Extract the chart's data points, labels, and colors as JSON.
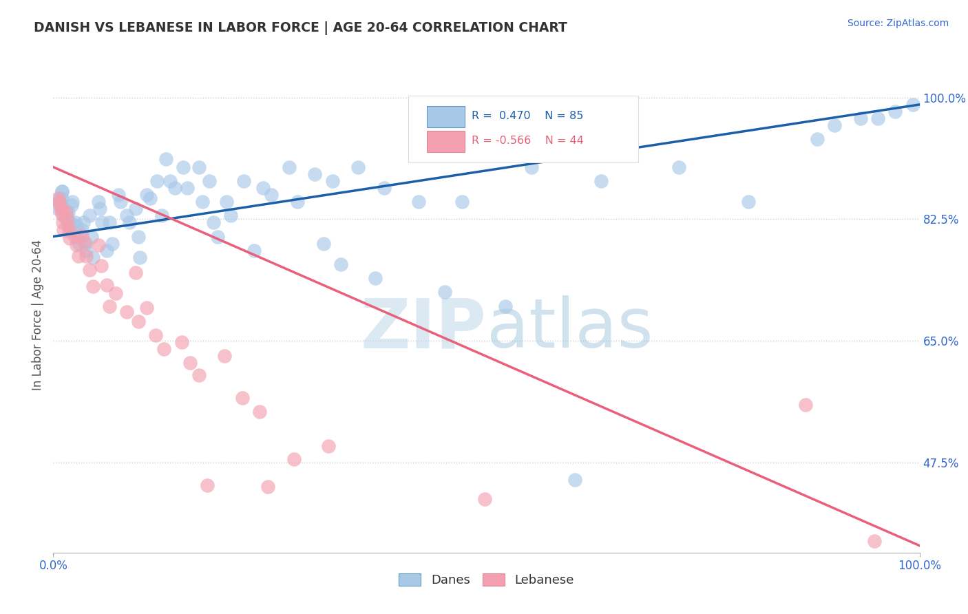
{
  "title": "DANISH VS LEBANESE IN LABOR FORCE | AGE 20-64 CORRELATION CHART",
  "source_text": "Source: ZipAtlas.com",
  "ylabel": "In Labor Force | Age 20-64",
  "xlim": [
    0.0,
    1.0
  ],
  "ylim": [
    0.345,
    1.03
  ],
  "yticks": [
    0.475,
    0.65,
    0.825,
    1.0
  ],
  "ytick_labels": [
    "47.5%",
    "65.0%",
    "82.5%",
    "100.0%"
  ],
  "xtick_labels": [
    "0.0%",
    "100.0%"
  ],
  "xticks": [
    0.0,
    1.0
  ],
  "danes_R": 0.47,
  "danes_N": 85,
  "lebanese_R": -0.566,
  "lebanese_N": 44,
  "danes_color": "#A8C8E8",
  "lebanese_color": "#F4A0B0",
  "danes_line_color": "#1A5FA8",
  "lebanese_line_color": "#E8607A",
  "background_color": "#FFFFFF",
  "grid_color": "#CCCCCC",
  "title_color": "#333333",
  "axis_label_color": "#3366CC",
  "watermark_zip": "ZIP",
  "watermark_atlas": "atlas",
  "danes_x": [
    0.005,
    0.007,
    0.008,
    0.009,
    0.01,
    0.01,
    0.01,
    0.011,
    0.012,
    0.015,
    0.016,
    0.017,
    0.018,
    0.019,
    0.02,
    0.021,
    0.022,
    0.025,
    0.027,
    0.028,
    0.03,
    0.033,
    0.035,
    0.037,
    0.038,
    0.042,
    0.044,
    0.046,
    0.052,
    0.054,
    0.056,
    0.062,
    0.065,
    0.068,
    0.075,
    0.078,
    0.085,
    0.088,
    0.095,
    0.098,
    0.1,
    0.108,
    0.112,
    0.12,
    0.125,
    0.13,
    0.135,
    0.14,
    0.15,
    0.155,
    0.168,
    0.172,
    0.18,
    0.185,
    0.19,
    0.2,
    0.205,
    0.22,
    0.232,
    0.242,
    0.252,
    0.272,
    0.282,
    0.302,
    0.312,
    0.322,
    0.332,
    0.352,
    0.372,
    0.382,
    0.422,
    0.452,
    0.472,
    0.522,
    0.552,
    0.602,
    0.632,
    0.722,
    0.802,
    0.882,
    0.902,
    0.932,
    0.952,
    0.972,
    0.992
  ],
  "danes_y": [
    0.84,
    0.85,
    0.855,
    0.845,
    0.855,
    0.865,
    0.865,
    0.84,
    0.83,
    0.825,
    0.83,
    0.835,
    0.82,
    0.815,
    0.82,
    0.845,
    0.85,
    0.82,
    0.815,
    0.8,
    0.79,
    0.81,
    0.82,
    0.79,
    0.78,
    0.83,
    0.8,
    0.77,
    0.85,
    0.84,
    0.82,
    0.78,
    0.82,
    0.79,
    0.86,
    0.85,
    0.83,
    0.82,
    0.84,
    0.8,
    0.77,
    0.86,
    0.855,
    0.88,
    0.83,
    0.912,
    0.88,
    0.87,
    0.9,
    0.87,
    0.9,
    0.85,
    0.88,
    0.82,
    0.8,
    0.85,
    0.83,
    0.88,
    0.78,
    0.87,
    0.86,
    0.9,
    0.85,
    0.89,
    0.79,
    0.88,
    0.76,
    0.9,
    0.74,
    0.87,
    0.85,
    0.72,
    0.85,
    0.7,
    0.9,
    0.45,
    0.88,
    0.9,
    0.85,
    0.94,
    0.96,
    0.97,
    0.97,
    0.98,
    0.99
  ],
  "lebanese_x": [
    0.005,
    0.007,
    0.008,
    0.009,
    0.01,
    0.011,
    0.012,
    0.015,
    0.016,
    0.017,
    0.018,
    0.019,
    0.025,
    0.027,
    0.029,
    0.033,
    0.036,
    0.038,
    0.042,
    0.046,
    0.052,
    0.055,
    0.062,
    0.065,
    0.072,
    0.085,
    0.095,
    0.098,
    0.108,
    0.118,
    0.128,
    0.148,
    0.158,
    0.168,
    0.178,
    0.198,
    0.218,
    0.238,
    0.248,
    0.278,
    0.318,
    0.498,
    0.868,
    0.948
  ],
  "lebanese_y": [
    0.855,
    0.85,
    0.845,
    0.838,
    0.832,
    0.82,
    0.81,
    0.835,
    0.825,
    0.815,
    0.808,
    0.798,
    0.8,
    0.788,
    0.772,
    0.802,
    0.792,
    0.772,
    0.752,
    0.728,
    0.788,
    0.758,
    0.73,
    0.7,
    0.718,
    0.692,
    0.748,
    0.678,
    0.698,
    0.658,
    0.638,
    0.648,
    0.618,
    0.6,
    0.442,
    0.628,
    0.568,
    0.548,
    0.44,
    0.48,
    0.498,
    0.422,
    0.558,
    0.362
  ],
  "danes_line_y_start": 0.8,
  "danes_line_y_end": 0.99,
  "lebanese_line_y_start": 0.9,
  "lebanese_line_y_end": 0.355
}
